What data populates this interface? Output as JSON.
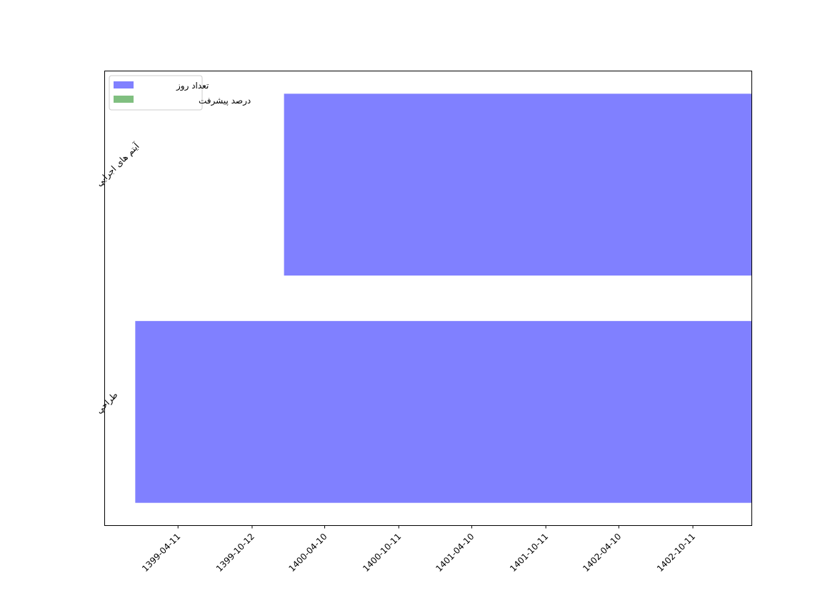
{
  "chart_data": {
    "type": "bar",
    "orientation": "horizontal",
    "title": "",
    "xlabel": "",
    "ylabel": "",
    "categories": [
      "طراحی",
      "آیتم های اجرایی"
    ],
    "series": [
      {
        "name": "تعداد روز",
        "color": "#8080ff",
        "bars": [
          {
            "category": "طراحی",
            "start": "1398-12-27",
            "end": "1403-03-06"
          },
          {
            "category": "آیتم های اجرایی",
            "start": "1400-01-02",
            "end": "1403-03-06"
          }
        ]
      },
      {
        "name": "درصد پیشرفت",
        "color": "#80bf80",
        "bars": []
      }
    ],
    "xticks": [
      "1399-04-11",
      "1399-10-12",
      "1400-04-10",
      "1400-10-11",
      "1401-04-10",
      "1401-10-11",
      "1402-04-10",
      "1402-10-11"
    ],
    "xlim": [
      "1398-10-11",
      "1403-03-06"
    ],
    "ylim": [
      -0.5,
      1.5
    ],
    "grid": false,
    "legend_placement": "upper-left"
  }
}
